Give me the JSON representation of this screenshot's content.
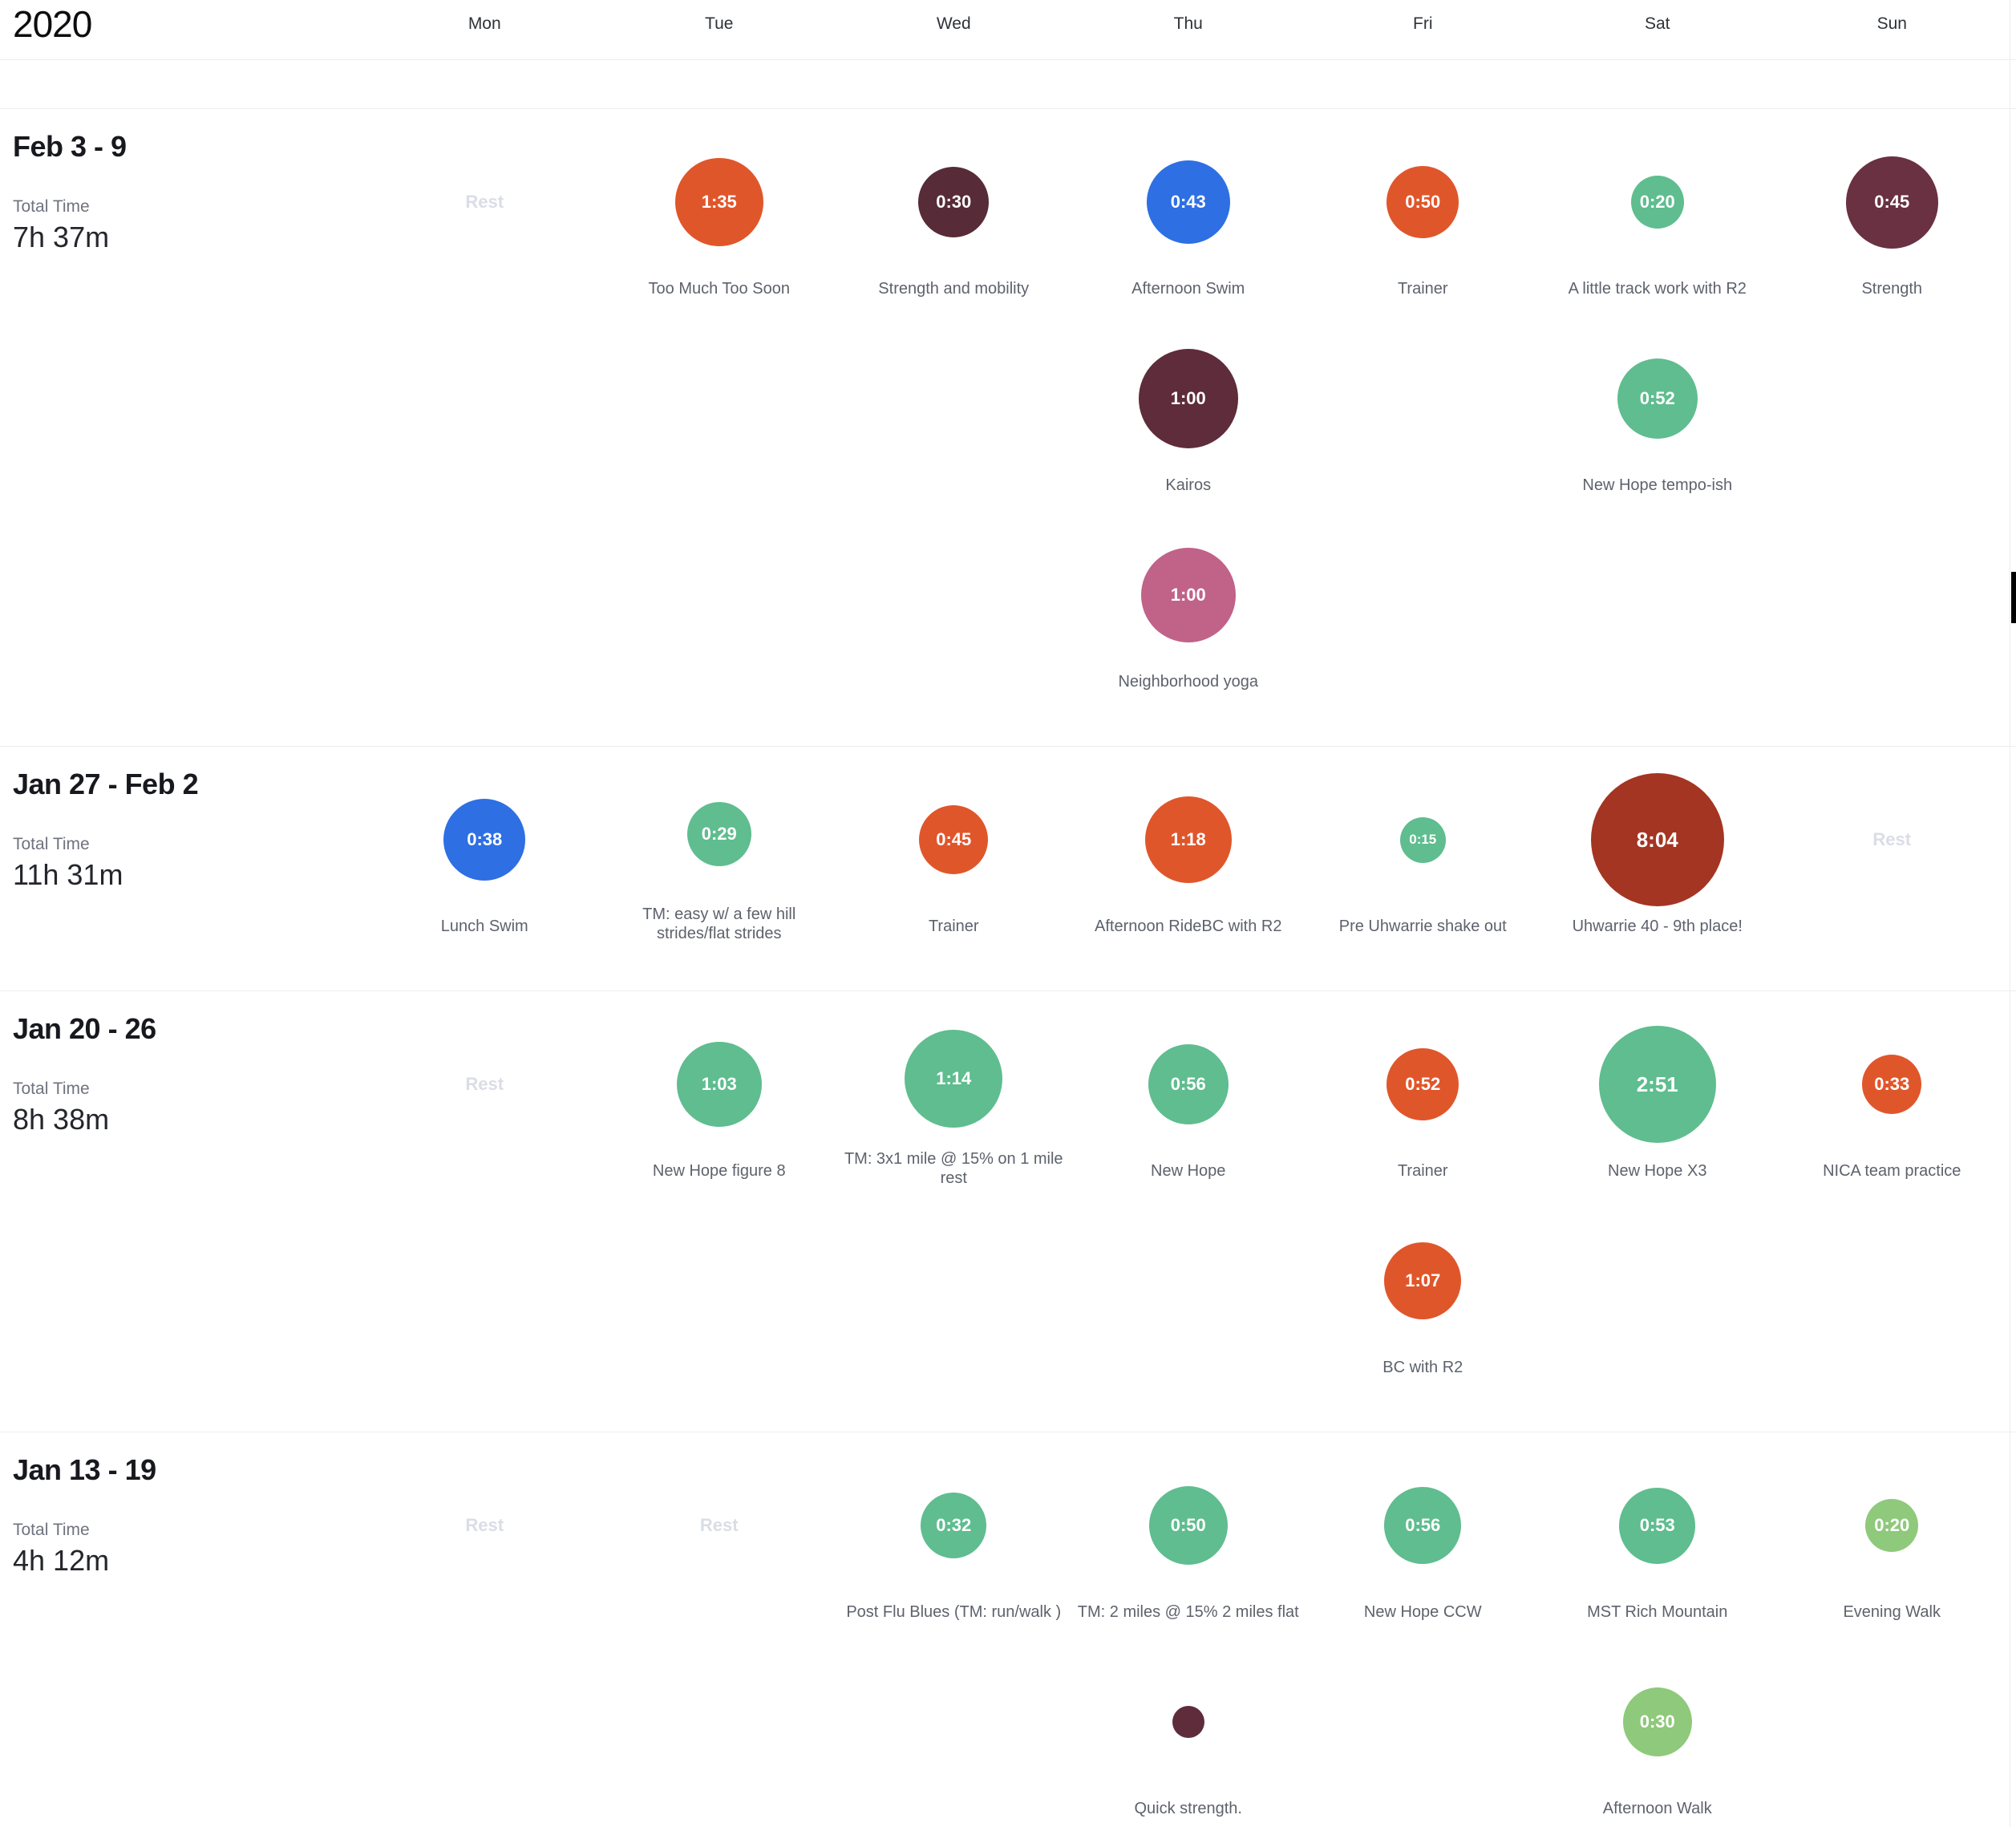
{
  "header": {
    "year": "2020",
    "days": [
      "Mon",
      "Tue",
      "Wed",
      "Thu",
      "Fri",
      "Sat",
      "Sun"
    ]
  },
  "rest_text": "Rest",
  "total_time_label": "Total Time",
  "palette": {
    "orange": "#E0562B",
    "green": "#5FBD8F",
    "light_green": "#8FC97B",
    "blue": "#2E6FE3",
    "maroon": "#5E2C3B",
    "plum": "#693142",
    "brick_red": "#A43523",
    "pink": "#C16289",
    "rest_gray": "#DADDE5"
  },
  "weeks": [
    {
      "title": "Feb 3 - 9",
      "total_time": "7h 37m",
      "rows": [
        [
          {
            "day": 0,
            "type": "rest"
          },
          {
            "day": 1,
            "type": "event",
            "time": "1:35",
            "title": "Too Much Too Soon",
            "color": "#E0562B",
            "size": 110
          },
          {
            "day": 2,
            "type": "event",
            "time": "0:30",
            "title": "Strength and mobility",
            "color": "#582B38",
            "size": 88
          },
          {
            "day": 3,
            "type": "event",
            "time": "0:43",
            "title": "Afternoon Swim",
            "color": "#2E6FE3",
            "size": 104
          },
          {
            "day": 4,
            "type": "event",
            "time": "0:50",
            "title": "Trainer",
            "color": "#E0562B",
            "size": 90
          },
          {
            "day": 5,
            "type": "event",
            "time": "0:20",
            "title": "A little track work with R2",
            "color": "#5FBD8F",
            "size": 66
          },
          {
            "day": 6,
            "type": "event",
            "time": "0:45",
            "title": "Strength",
            "color": "#693142",
            "size": 115
          }
        ],
        [
          {
            "day": 3,
            "type": "event",
            "time": "1:00",
            "title": "Kairos",
            "color": "#5E2C3B",
            "size": 124
          },
          {
            "day": 5,
            "type": "event",
            "time": "0:52",
            "title": "New Hope tempo-ish",
            "color": "#5FBD8F",
            "size": 100
          }
        ],
        [
          {
            "day": 3,
            "type": "event",
            "time": "1:00",
            "title": "Neighborhood yoga",
            "color": "#C16289",
            "size": 118
          }
        ]
      ]
    },
    {
      "title": "Jan 27 - Feb 2",
      "total_time": "11h 31m",
      "rows": [
        [
          {
            "day": 0,
            "type": "event",
            "time": "0:38",
            "title": "Lunch Swim",
            "color": "#2E6FE3",
            "size": 102
          },
          {
            "day": 1,
            "type": "event",
            "time": "0:29",
            "title": "TM: easy w/ a few hill strides/flat strides",
            "color": "#5FBD8F",
            "size": 80
          },
          {
            "day": 2,
            "type": "event",
            "time": "0:45",
            "title": "Trainer",
            "color": "#E0562B",
            "size": 86
          },
          {
            "day": 3,
            "type": "event",
            "time": "1:18",
            "title": "Afternoon RideBC with R2",
            "color": "#E0562B",
            "size": 108
          },
          {
            "day": 4,
            "type": "event",
            "time": "0:15",
            "title": "Pre Uhwarrie shake out",
            "color": "#5FBD8F",
            "size": 57
          },
          {
            "day": 5,
            "type": "event",
            "time": "8:04",
            "title": "Uhwarrie 40 - 9th place!",
            "color": "#A43523",
            "size": 166
          },
          {
            "day": 6,
            "type": "rest"
          }
        ]
      ]
    },
    {
      "title": "Jan 20 - 26",
      "total_time": "8h 38m",
      "rows": [
        [
          {
            "day": 0,
            "type": "rest"
          },
          {
            "day": 1,
            "type": "event",
            "time": "1:03",
            "title": "New Hope figure 8",
            "color": "#5FBD8F",
            "size": 106
          },
          {
            "day": 2,
            "type": "event",
            "time": "1:14",
            "title": "TM: 3x1 mile @ 15% on 1 mile rest",
            "color": "#5FBD8F",
            "size": 122
          },
          {
            "day": 3,
            "type": "event",
            "time": "0:56",
            "title": "New Hope",
            "color": "#5FBD8F",
            "size": 100
          },
          {
            "day": 4,
            "type": "event",
            "time": "0:52",
            "title": "Trainer",
            "color": "#E0562B",
            "size": 90
          },
          {
            "day": 5,
            "type": "event",
            "time": "2:51",
            "title": "New Hope X3",
            "color": "#5FBD8F",
            "size": 146
          },
          {
            "day": 6,
            "type": "event",
            "time": "0:33",
            "title": "NICA team practice",
            "color": "#E0562B",
            "size": 74
          }
        ],
        [
          {
            "day": 4,
            "type": "event",
            "time": "1:07",
            "title": "BC with R2",
            "color": "#E0562B",
            "size": 96
          }
        ]
      ]
    },
    {
      "title": "Jan 13 - 19",
      "total_time": "4h 12m",
      "rows": [
        [
          {
            "day": 0,
            "type": "rest"
          },
          {
            "day": 1,
            "type": "rest"
          },
          {
            "day": 2,
            "type": "event",
            "time": "0:32",
            "title": "Post Flu Blues (TM: run/walk )",
            "color": "#5FBD8F",
            "size": 82
          },
          {
            "day": 3,
            "type": "event",
            "time": "0:50",
            "title": "TM: 2 miles @ 15% 2 miles flat",
            "color": "#5FBD8F",
            "size": 98
          },
          {
            "day": 4,
            "type": "event",
            "time": "0:56",
            "title": "New Hope CCW",
            "color": "#5FBD8F",
            "size": 96
          },
          {
            "day": 5,
            "type": "event",
            "time": "0:53",
            "title": "MST Rich Mountain",
            "color": "#5FBD8F",
            "size": 95
          },
          {
            "day": 6,
            "type": "event",
            "time": "0:20",
            "title": "Evening Walk",
            "color": "#8FC97B",
            "size": 66
          }
        ],
        [
          {
            "day": 3,
            "type": "event",
            "time": "",
            "title": "Quick strength.",
            "color": "#5E2C3B",
            "size": 40
          },
          {
            "day": 5,
            "type": "event",
            "time": "0:30",
            "title": "Afternoon Walk",
            "color": "#8FC97B",
            "size": 86
          }
        ]
      ]
    }
  ]
}
